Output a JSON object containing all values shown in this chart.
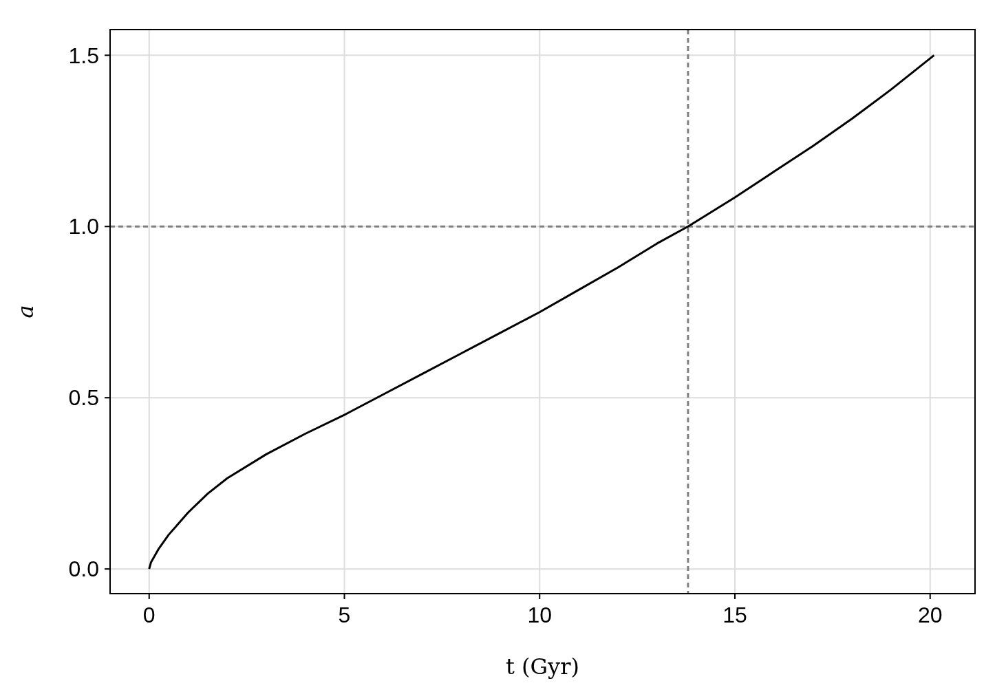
{
  "chart_data": {
    "type": "line",
    "xlabel": "t (Gyr)",
    "ylabel": "a",
    "xlim": [
      -1,
      21.15
    ],
    "ylim": [
      -0.072,
      1.575
    ],
    "xticks": [
      0,
      5,
      10,
      15,
      20
    ],
    "yticks": [
      {
        "value": 0,
        "label": "0.0"
      },
      0.5,
      {
        "value": 1,
        "label": "1.0"
      },
      1.5
    ],
    "grid": true,
    "line_style": "solid",
    "series": [
      {
        "color": "#000000",
        "x": [
          0,
          0.05,
          0.1,
          0.25,
          0.5,
          1,
          1.5,
          2,
          3,
          4,
          5,
          6,
          7,
          8,
          9,
          10,
          11,
          12,
          13,
          13.8,
          15,
          16,
          17,
          18,
          19,
          20.1
        ],
        "values": [
          0,
          0.02,
          0.03,
          0.06,
          0.1,
          0.165,
          0.22,
          0.265,
          0.335,
          0.395,
          0.45,
          0.51,
          0.57,
          0.63,
          0.69,
          0.75,
          0.815,
          0.88,
          0.95,
          1.0,
          1.085,
          1.16,
          1.235,
          1.315,
          1.4,
          1.5
        ]
      }
    ],
    "ref_lines": [
      {
        "axis": "x",
        "value": 13.8,
        "color": "#808080",
        "line_style": "dashed"
      },
      {
        "axis": "y",
        "value": 1.0,
        "color": "#808080",
        "line_style": "dashed"
      }
    ]
  }
}
